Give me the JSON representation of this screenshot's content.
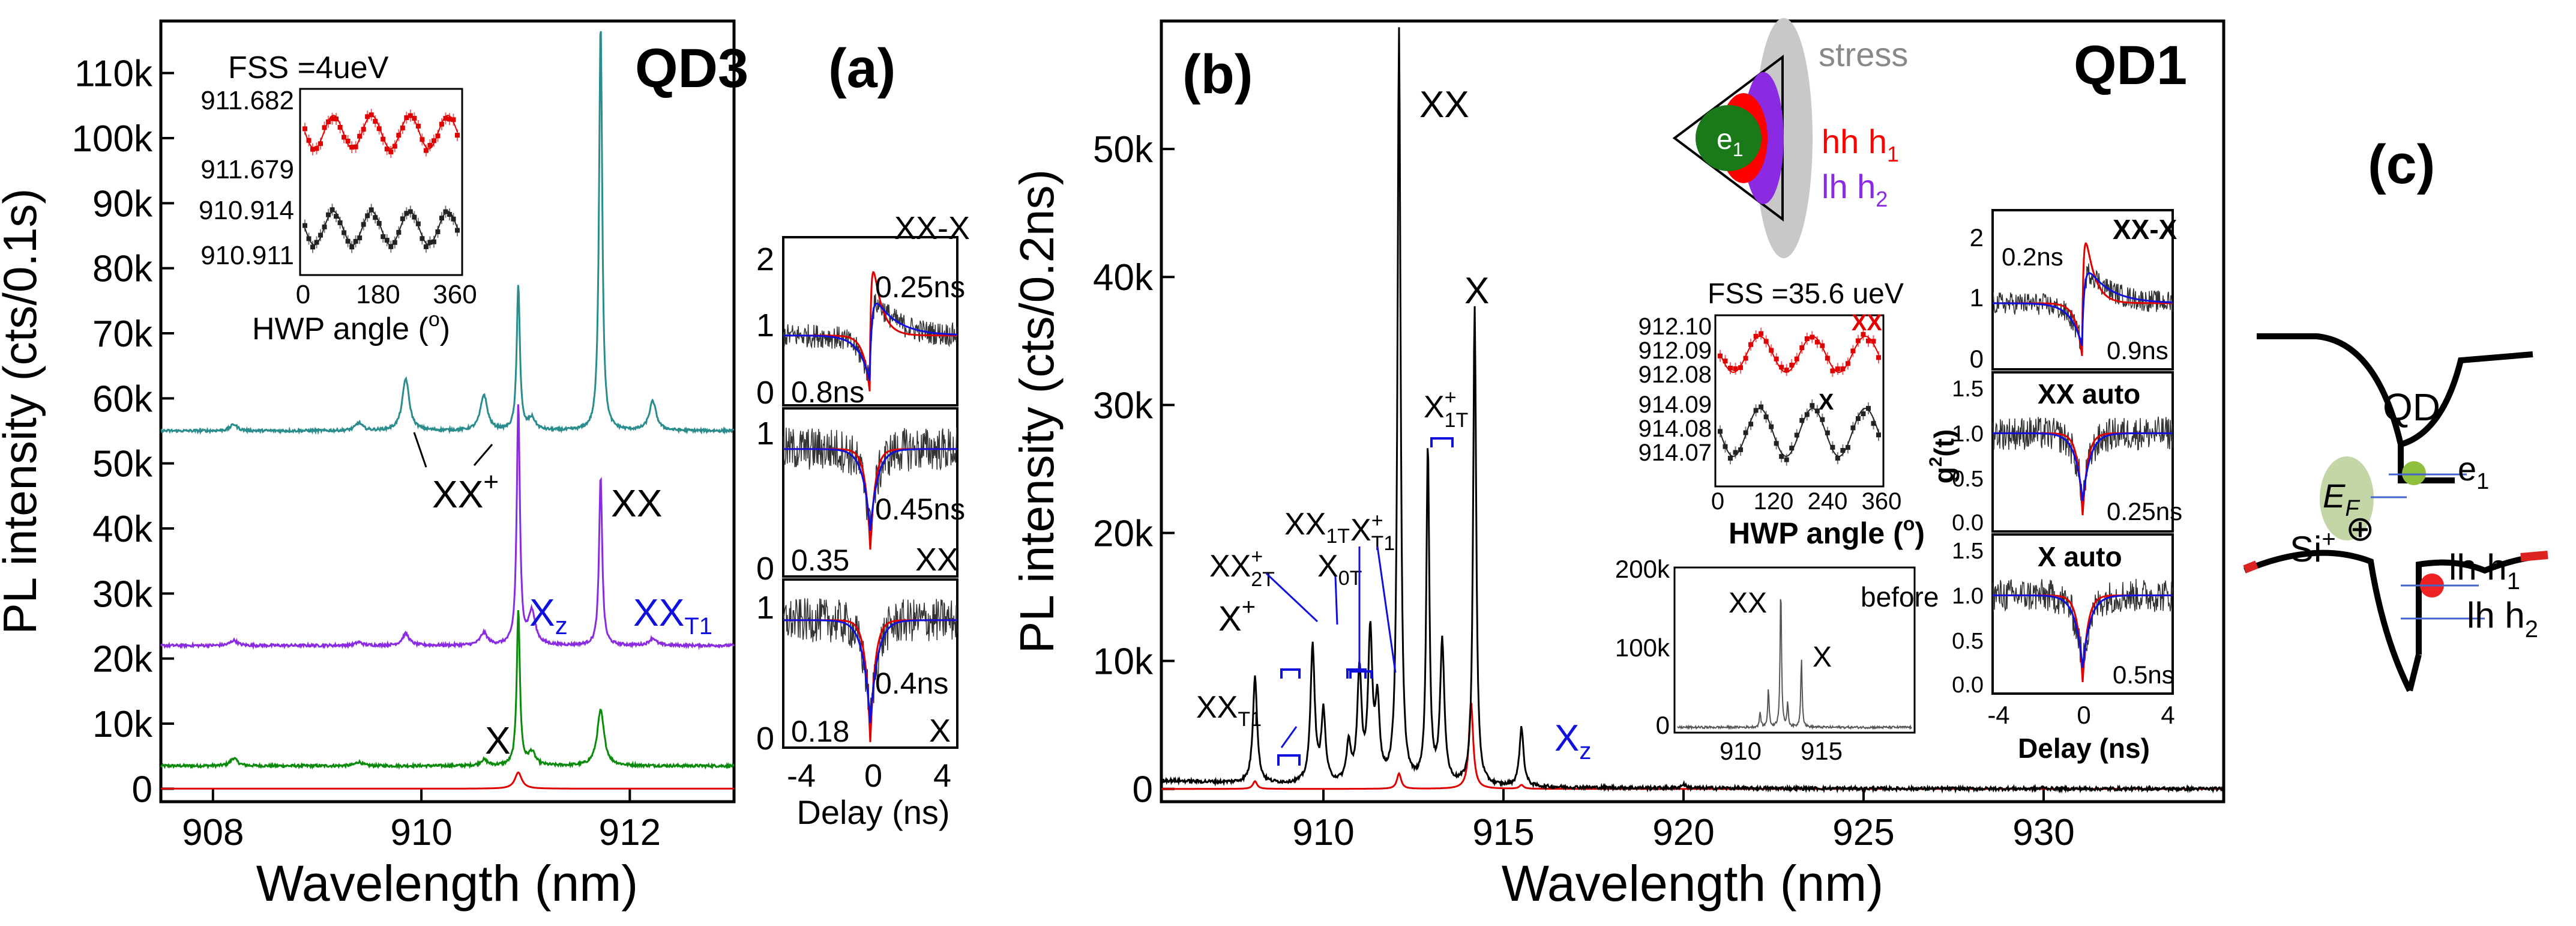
{
  "panel_a": {
    "panel_label": "(a)",
    "dot_label": "QD3",
    "ylabel": "PL intensity (cts/0.1s)",
    "xlabel": "Wavelength (nm)",
    "xticks": [
      908,
      910,
      912
    ],
    "yticks": [
      "0",
      "10k",
      "20k",
      "30k",
      "40k",
      "50k",
      "60k",
      "70k",
      "80k",
      "90k",
      "100k",
      "110k"
    ],
    "peak_labels": {
      "xx_plus": "XX",
      "xx_plus_sup": "+",
      "xx": "XX",
      "x": "X",
      "xz": "X",
      "xz_sub": "z",
      "xxt1": "XX",
      "xxt1_sub": "T1"
    },
    "colors": {
      "teal": "#2a8c8c",
      "purple": "#8a2be2",
      "green": "#0a8a0a",
      "red": "#e00000",
      "blue": "#1010dd"
    },
    "inset": {
      "title": "FSS =4ueV",
      "yticks": [
        "911.682",
        "911.679",
        "910.914",
        "910.911"
      ],
      "xticks": [
        "0",
        "180",
        "360"
      ],
      "xlabel": "HWP angle (",
      "xlabel_sup": "o",
      "xlabel_end": ")"
    },
    "g2_insets": [
      {
        "label": "XX-X",
        "tau1": "0.25ns",
        "tau2": "0.8ns",
        "yticks": [
          "0",
          "1",
          "2"
        ]
      },
      {
        "label": "XX",
        "tau1": "0.45ns",
        "tau2": "0.35",
        "yticks": [
          "0",
          "1"
        ]
      },
      {
        "label": "X",
        "tau1": "0.4ns",
        "tau2": "0.18",
        "yticks": [
          "0",
          "1"
        ]
      }
    ],
    "g2_xticks": [
      "-4",
      "0",
      "4"
    ],
    "g2_xlabel": "Delay (ns)"
  },
  "panel_b": {
    "panel_label": "(b)",
    "dot_label": "QD1",
    "ylabel": "PL intensity (cts/0.2ns)",
    "xlabel": "Wavelength (nm)",
    "xticks": [
      910,
      915,
      920,
      925,
      930
    ],
    "yticks": [
      "0",
      "10k",
      "20k",
      "30k",
      "40k",
      "50k"
    ],
    "peak_labels": {
      "xx": "XX",
      "x": "X",
      "x_plus": "X",
      "x_plus_sup": "+",
      "xx2t": "XX",
      "xx2t_sup": "+",
      "xx2t_sub": "2T",
      "x0t": "X",
      "x0t_sub": "0T",
      "xx1t": "XX",
      "xx1t_sub": "1T",
      "xt1p": "X",
      "xt1p_sup": "+",
      "xt1p_sub": "T1",
      "x1tp": "X",
      "x1tp_sup": "+",
      "x1tp_sub": "1T",
      "xxt1": "XX",
      "xxt1_sub": "T1",
      "xz": "X",
      "xz_sub": "z"
    },
    "schematic": {
      "stress": "stress",
      "e1": "e",
      "e1_sub": "1",
      "hh": "hh h",
      "hh_sub": "1",
      "lh": "lh h",
      "lh_sub": "2"
    },
    "inset_fss": {
      "title": "FSS =35.6 ueV",
      "label_xx": "XX",
      "label_x": "X",
      "yticks": [
        "912.10",
        "912.09",
        "912.08",
        "914.09",
        "914.08",
        "914.07"
      ],
      "xticks": [
        "0",
        "120",
        "240",
        "360"
      ],
      "xlabel": "HWP angle (",
      "xlabel_sup": "o",
      "xlabel_end": ")"
    },
    "inset_before": {
      "label": "before",
      "xx": "XX",
      "x": "X",
      "yticks": [
        "0",
        "100k",
        "200k"
      ],
      "xticks": [
        "910",
        "915"
      ]
    },
    "g2_insets": [
      {
        "label": "XX-X",
        "tau1": "0.2ns",
        "tau2": "0.9ns",
        "yticks": [
          "0",
          "1",
          "2"
        ]
      },
      {
        "label": "XX auto",
        "tau1": "0.25ns",
        "yticks": [
          "0.0",
          "0.5",
          "1.0",
          "1.5"
        ]
      },
      {
        "label": "X auto",
        "tau1": "0.5ns",
        "yticks": [
          "0.0",
          "0.5",
          "1.0",
          "1.5"
        ]
      }
    ],
    "g2_ylabel": "g",
    "g2_ylabel_sup": "2",
    "g2_ylabel_end": "(t)",
    "g2_xticks": [
      "-4",
      "0",
      "4"
    ],
    "g2_xlabel": "Delay (ns)"
  },
  "panel_c": {
    "panel_label": "(c)",
    "qd": "QD",
    "e1": "e",
    "e1_sub": "1",
    "ef": "E",
    "ef_sub": "F",
    "oplus": "⊕",
    "si": "Si",
    "si_sup": "+",
    "lh1": "lh h",
    "lh1_sub": "1",
    "lh2": "lh h",
    "lh2_sub": "2"
  },
  "chart_data": [
    {
      "type": "line",
      "title": "QD3",
      "xlabel": "Wavelength (nm)",
      "ylabel": "PL intensity (cts/0.1s)",
      "xlim": [
        907.5,
        913.0
      ],
      "ylim": [
        -2000,
        118000
      ],
      "series": [
        {
          "name": "red",
          "offset": 0,
          "x": [
            907.5,
            910.9,
            910.93,
            910.96,
            913.0
          ],
          "values": [
            0,
            0,
            2500,
            0,
            0
          ]
        },
        {
          "name": "green",
          "offset": 3500,
          "x": [
            907.5,
            908.15,
            908.2,
            909.4,
            910.6,
            910.93,
            911.06,
            911.72,
            913.0
          ],
          "values": [
            0,
            0,
            1200,
            600,
            900,
            24000,
            2000,
            8500,
            0
          ]
        },
        {
          "name": "purple",
          "offset": 22000,
          "x": [
            907.5,
            908.2,
            909.4,
            909.85,
            910.6,
            910.93,
            911.06,
            911.72,
            912.22,
            913.0
          ],
          "values": [
            0,
            800,
            500,
            1800,
            1900,
            37000,
            5000,
            26000,
            1100,
            0
          ]
        },
        {
          "name": "teal",
          "offset": 55000,
          "x": [
            907.5,
            908.2,
            909.4,
            909.85,
            910.6,
            910.93,
            911.06,
            911.72,
            912.22,
            913.0
          ],
          "values": [
            0,
            1000,
            1200,
            8000,
            5500,
            22500,
            1800,
            63000,
            4500,
            0
          ]
        }
      ]
    },
    {
      "type": "line",
      "title": "QD1",
      "xlabel": "Wavelength (nm)",
      "ylabel": "PL intensity (cts/0.2ns)",
      "xlim": [
        905.5,
        935.0
      ],
      "ylim": [
        -1000,
        60000
      ],
      "series": [
        {
          "name": "black",
          "x": [
            908.1,
            909.7,
            910.0,
            910.7,
            911.0,
            911.3,
            911.5,
            912.1,
            912.9,
            913.3,
            914.2,
            915.5,
            920,
            930
          ],
          "values": [
            8400,
            10800,
            5500,
            3000,
            8600,
            11400,
            6000,
            59000,
            26200,
            11000,
            37400,
            4600,
            300,
            100
          ]
        },
        {
          "name": "red",
          "x": [
            908.1,
            912.1,
            914.1,
            915.5
          ],
          "values": [
            600,
            1200,
            6800,
            300
          ]
        }
      ]
    }
  ]
}
